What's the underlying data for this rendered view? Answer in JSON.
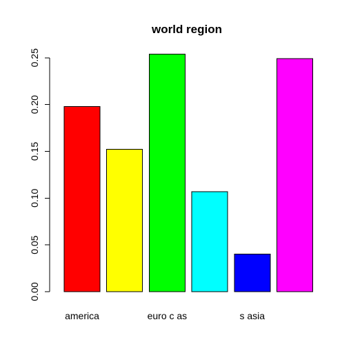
{
  "chart_data": {
    "type": "bar",
    "title": "world region",
    "xlabel": "",
    "ylabel": "",
    "categories": [
      "america",
      "",
      "euro c as",
      "",
      "s asia",
      ""
    ],
    "values": [
      0.198,
      0.152,
      0.254,
      0.107,
      0.04,
      0.249
    ],
    "colors": [
      "#ff0000",
      "#ffff00",
      "#00ff00",
      "#00ffff",
      "#0000ff",
      "#ff00ff"
    ],
    "ylim": [
      0,
      0.25
    ],
    "yticks": [
      0.0,
      0.05,
      0.1,
      0.15,
      0.2,
      0.25
    ],
    "ytick_labels": [
      "0.00",
      "0.05",
      "0.10",
      "0.15",
      "0.20",
      "0.25"
    ],
    "grid": false,
    "legend": "none"
  }
}
